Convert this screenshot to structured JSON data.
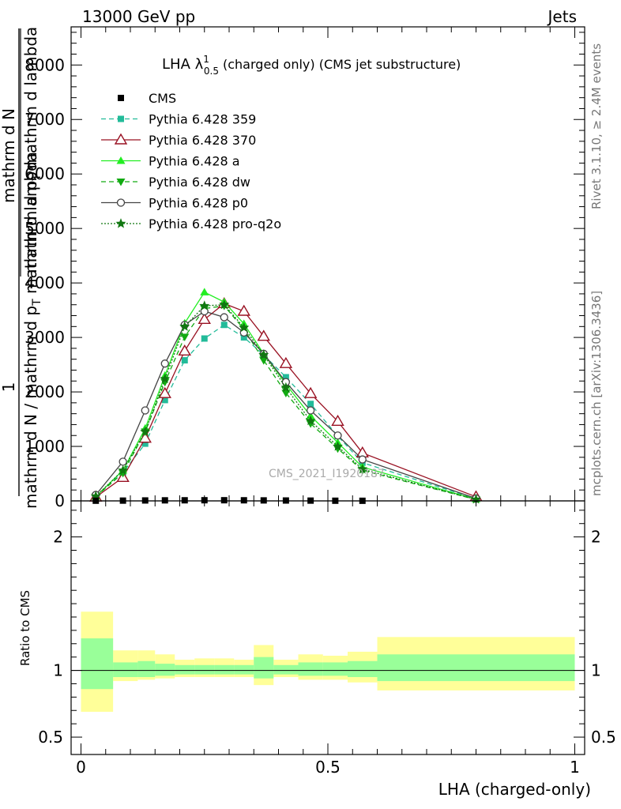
{
  "header": {
    "left": "13000 GeV pp",
    "right": "Jets"
  },
  "side_labels": {
    "rivet": "Rivet 3.1.10, ≥ 2.4M events",
    "mcplots": "mcplots.cern.ch [arXiv:1306.3436]"
  },
  "watermark": "CMS_2021_I1920187",
  "colors": {
    "cms": "#000000",
    "p359": "#22bb99",
    "p370": "#991122",
    "pa": "#22ee22",
    "pdw": "#11aa11",
    "pp0": "#444444",
    "pq2o": "#117711",
    "band_outer": "#ffff99",
    "band_inner": "#99ff99"
  },
  "chart_data": [
    {
      "type": "line",
      "title_main": "LHA λ",
      "title_sup": "1",
      "title_sub": "0.5",
      "title_rest": "(charged only) (CMS jet substructure)",
      "ylabel_num": "1",
      "ylabel_den1": "mathrm d N / mathrm d p",
      "ylabel_den1_sub": "T",
      "ylabel_rest": "mathrm d N",
      "ylabel_frac": "mathrm d p",
      "ylabel_frac_sub": "T",
      "ylabel_lambda": "mathrm d lambda",
      "xlim": [
        -0.02,
        1.02
      ],
      "ylim": [
        0,
        8700
      ],
      "yticks": [
        0,
        1000,
        2000,
        3000,
        4000,
        5000,
        6000,
        7000,
        8000
      ],
      "ytick_labels": [
        "0",
        "1000",
        "2000",
        "3000",
        "4000",
        "5000",
        "6000",
        "7000",
        "8000"
      ],
      "x": [
        0.03,
        0.085,
        0.13,
        0.17,
        0.21,
        0.25,
        0.29,
        0.33,
        0.37,
        0.415,
        0.465,
        0.52,
        0.57,
        0.8
      ],
      "cms_x": [
        0.03,
        0.085,
        0.13,
        0.17,
        0.21,
        0.25,
        0.29,
        0.33,
        0.37,
        0.415,
        0.465,
        0.515,
        0.57
      ],
      "cms_values": [
        3,
        5,
        8,
        10,
        11,
        12,
        12,
        11,
        9,
        7,
        5,
        3,
        2
      ],
      "series": [
        {
          "name": "CMS",
          "color_key": "cms",
          "marker": "square-filled",
          "dash": "none"
        },
        {
          "name": "Pythia 6.428 359",
          "color_key": "p359",
          "marker": "square-filled",
          "dash": "6,4",
          "values": [
            90,
            520,
            1050,
            1850,
            2580,
            2980,
            3230,
            3000,
            2680,
            2270,
            1780,
            1190,
            700,
            40
          ]
        },
        {
          "name": "Pythia 6.428 370",
          "color_key": "p370",
          "marker": "triangle-open",
          "dash": "none",
          "values": [
            70,
            430,
            1150,
            1970,
            2750,
            3330,
            3620,
            3480,
            3020,
            2520,
            1970,
            1460,
            880,
            75
          ]
        },
        {
          "name": "Pythia 6.428 a",
          "color_key": "pa",
          "marker": "triangle-filled",
          "dash": "none",
          "values": [
            80,
            560,
            1330,
            2300,
            3260,
            3830,
            3650,
            3250,
            2700,
            2140,
            1560,
            1070,
            620,
            30
          ]
        },
        {
          "name": "Pythia 6.428 dw",
          "color_key": "pdw",
          "marker": "triangle-down-filled",
          "dash": "6,4",
          "values": [
            80,
            510,
            1270,
            2180,
            3010,
            3530,
            3580,
            3150,
            2580,
            1980,
            1420,
            960,
            560,
            25
          ]
        },
        {
          "name": "Pythia 6.428 p0",
          "color_key": "pp0",
          "marker": "circle-open",
          "dash": "none",
          "values": [
            110,
            720,
            1660,
            2520,
            3230,
            3480,
            3370,
            3090,
            2700,
            2180,
            1660,
            1200,
            760,
            45
          ]
        },
        {
          "name": "Pythia 6.428 pro-q2o",
          "color_key": "pq2o",
          "marker": "star",
          "dash": "2,2",
          "values": [
            85,
            560,
            1270,
            2240,
            3200,
            3580,
            3600,
            3180,
            2680,
            2080,
            1470,
            1000,
            580,
            28
          ]
        }
      ]
    },
    {
      "type": "area",
      "ylabel": "Ratio to CMS",
      "xlabel": "LHA (charged-only)",
      "xlim": [
        -0.02,
        1.02
      ],
      "ylim": [
        0.37,
        2.27
      ],
      "xticks": [
        0,
        0.5,
        1
      ],
      "xtick_labels": [
        "0",
        "0.5",
        "1"
      ],
      "yticks": [
        0.5,
        1,
        2
      ],
      "ytick_labels": [
        "0.5",
        "1",
        "2"
      ],
      "bins": [
        {
          "lo": 0.0,
          "hi": 0.065,
          "inner": [
            0.86,
            1.24
          ],
          "outer": [
            0.69,
            1.44
          ]
        },
        {
          "lo": 0.065,
          "hi": 0.115,
          "inner": [
            0.95,
            1.06
          ],
          "outer": [
            0.92,
            1.15
          ]
        },
        {
          "lo": 0.115,
          "hi": 0.15,
          "inner": [
            0.95,
            1.07
          ],
          "outer": [
            0.93,
            1.15
          ]
        },
        {
          "lo": 0.15,
          "hi": 0.19,
          "inner": [
            0.96,
            1.05
          ],
          "outer": [
            0.94,
            1.12
          ]
        },
        {
          "lo": 0.19,
          "hi": 0.23,
          "inner": [
            0.97,
            1.04
          ],
          "outer": [
            0.95,
            1.08
          ]
        },
        {
          "lo": 0.23,
          "hi": 0.27,
          "inner": [
            0.97,
            1.04
          ],
          "outer": [
            0.95,
            1.09
          ]
        },
        {
          "lo": 0.27,
          "hi": 0.31,
          "inner": [
            0.97,
            1.04
          ],
          "outer": [
            0.95,
            1.09
          ]
        },
        {
          "lo": 0.31,
          "hi": 0.35,
          "inner": [
            0.97,
            1.04
          ],
          "outer": [
            0.95,
            1.08
          ]
        },
        {
          "lo": 0.35,
          "hi": 0.39,
          "inner": [
            0.94,
            1.1
          ],
          "outer": [
            0.89,
            1.19
          ]
        },
        {
          "lo": 0.39,
          "hi": 0.44,
          "inner": [
            0.97,
            1.04
          ],
          "outer": [
            0.95,
            1.08
          ]
        },
        {
          "lo": 0.44,
          "hi": 0.49,
          "inner": [
            0.96,
            1.06
          ],
          "outer": [
            0.93,
            1.12
          ]
        },
        {
          "lo": 0.49,
          "hi": 0.54,
          "inner": [
            0.96,
            1.06
          ],
          "outer": [
            0.93,
            1.11
          ]
        },
        {
          "lo": 0.54,
          "hi": 0.6,
          "inner": [
            0.95,
            1.07
          ],
          "outer": [
            0.91,
            1.14
          ]
        },
        {
          "lo": 0.6,
          "hi": 1.0,
          "inner": [
            0.92,
            1.12
          ],
          "outer": [
            0.85,
            1.25
          ]
        }
      ]
    }
  ]
}
